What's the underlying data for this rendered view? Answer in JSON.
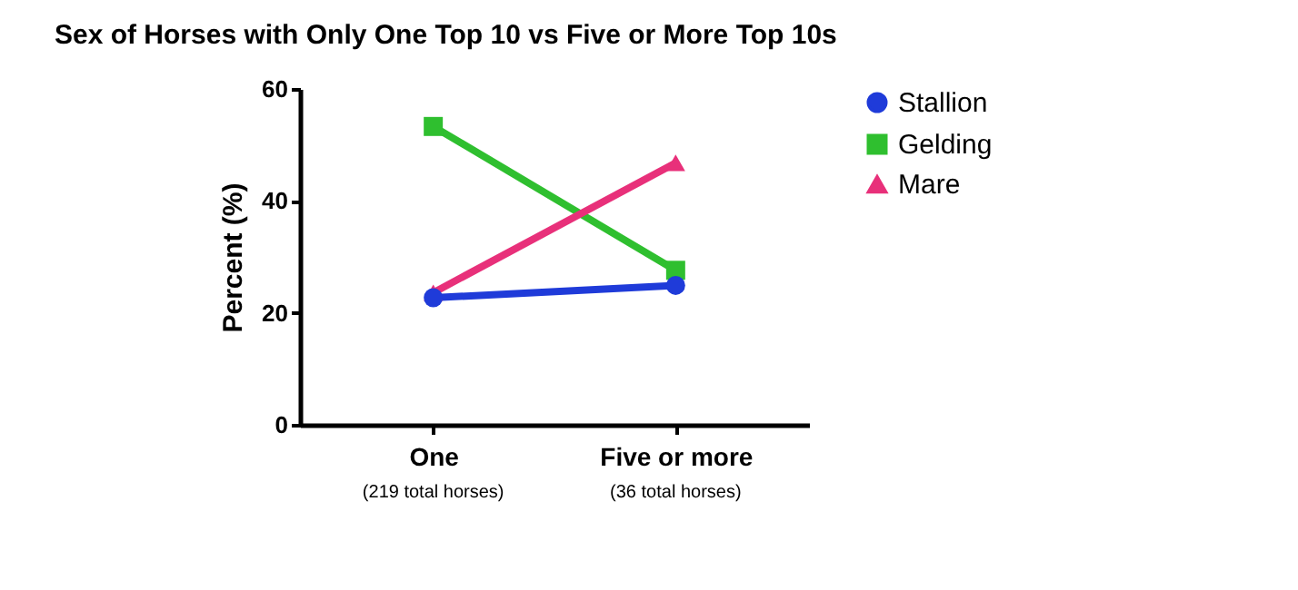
{
  "chart_data": {
    "type": "line",
    "title": "Sex of Horses with Only One Top 10 vs Five or More Top 10s",
    "ylabel": "Percent (%)",
    "categories": [
      "One",
      "Five or more"
    ],
    "annotations": [
      "(219 total horses)",
      "(36 total horses)"
    ],
    "series": [
      {
        "name": "Stallion",
        "color": "#1f3bd9",
        "marker": "circle",
        "values": [
          22.7,
          24.9
        ]
      },
      {
        "name": "Gelding",
        "color": "#2fbf2f",
        "marker": "square",
        "values": [
          53.3,
          27.6
        ]
      },
      {
        "name": "Mare",
        "color": "#e8307a",
        "marker": "triangle",
        "values": [
          23.6,
          46.8
        ]
      }
    ],
    "ylim": [
      0,
      60
    ],
    "yticks": [
      0,
      20,
      40,
      60
    ],
    "grid": false,
    "legend": "top right"
  }
}
